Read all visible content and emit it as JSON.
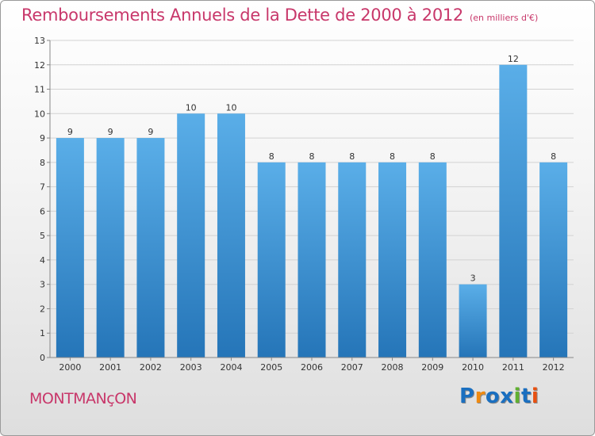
{
  "page": {
    "title": "Remboursements Annuels de la Dette de 2000 à 2012",
    "unit": "(en milliers d'€)",
    "commune": "MONTMANçON",
    "logo": "Proxiti",
    "colors": {
      "title": "#c8376a",
      "bar_light": "#5aaee8",
      "bar_dark": "#2575b8",
      "logo": [
        "#1a6fc0",
        "#f08a10",
        "#1a6fc0",
        "#1a6fc0",
        "#60b030",
        "#1a6fc0",
        "#e85010"
      ]
    }
  },
  "chart_data": {
    "type": "bar",
    "title": "Remboursements Annuels de la Dette de 2000 à 2012",
    "xlabel": "",
    "ylabel": "",
    "categories": [
      "2000",
      "2001",
      "2002",
      "2003",
      "2004",
      "2005",
      "2006",
      "2007",
      "2008",
      "2009",
      "2010",
      "2011",
      "2012"
    ],
    "values": [
      9,
      9,
      9,
      10,
      10,
      8,
      8,
      8,
      8,
      8,
      3,
      12,
      8
    ],
    "ylim": [
      0,
      13
    ],
    "yticks": [
      0,
      1,
      2,
      3,
      4,
      5,
      6,
      7,
      8,
      9,
      10,
      11,
      12,
      13
    ],
    "grid": true
  }
}
